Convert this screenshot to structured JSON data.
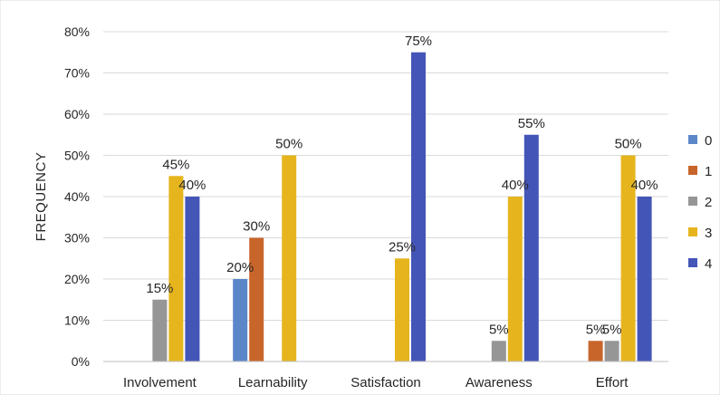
{
  "chart_data": {
    "type": "bar",
    "title": "",
    "xlabel": "",
    "ylabel": "FREQUENCY",
    "ylim": [
      0,
      80
    ],
    "yticks": [
      "0%",
      "10%",
      "20%",
      "30%",
      "40%",
      "50%",
      "60%",
      "70%",
      "80%"
    ],
    "grid": true,
    "legend_position": "right",
    "categories": [
      "Involvement",
      "Learnability",
      "Satisfaction",
      "Awareness",
      "Effort"
    ],
    "series": [
      {
        "name": "0",
        "color": "#5B87C9",
        "values": [
          0,
          20,
          0,
          0,
          0
        ],
        "labels": [
          "",
          "20%",
          "",
          "",
          ""
        ]
      },
      {
        "name": "1",
        "color": "#C8652B",
        "values": [
          0,
          30,
          0,
          0,
          5
        ],
        "labels": [
          "",
          "30%",
          "",
          "",
          "5%"
        ]
      },
      {
        "name": "2",
        "color": "#969696",
        "values": [
          15,
          0,
          0,
          5,
          5
        ],
        "labels": [
          "15%",
          "",
          "",
          "5%",
          "5%"
        ]
      },
      {
        "name": "3",
        "color": "#E6B51E",
        "values": [
          45,
          50,
          25,
          40,
          50
        ],
        "labels": [
          "45%",
          "50%",
          "25%",
          "40%",
          "50%"
        ]
      },
      {
        "name": "4",
        "color": "#4455B8",
        "values": [
          40,
          0,
          75,
          55,
          40
        ],
        "labels": [
          "40%",
          "",
          "75%",
          "55%",
          "40%"
        ]
      }
    ]
  }
}
